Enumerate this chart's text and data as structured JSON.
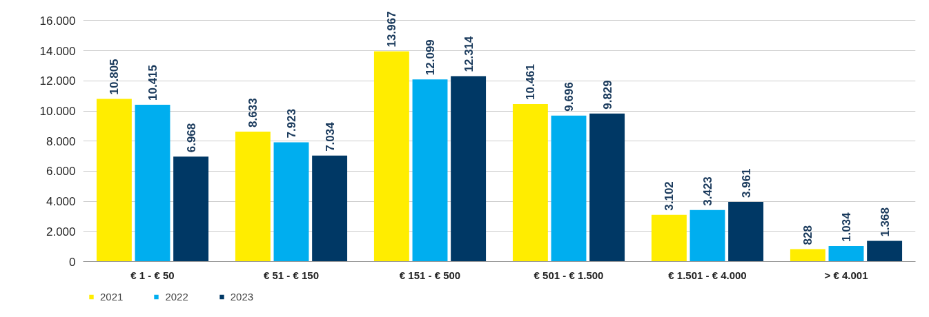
{
  "chart_data": {
    "type": "bar",
    "categories": [
      "€ 1 - € 50",
      "€ 51 - € 150",
      "€ 151 - € 500",
      "€ 501 - € 1.500",
      "€ 1.501 - € 4.000",
      "> € 4.001"
    ],
    "series": [
      {
        "name": "2021",
        "color": "#ffed00",
        "values": [
          10805,
          8633,
          13967,
          10461,
          3102,
          828
        ],
        "value_labels": [
          "10.805",
          "8.633",
          "13.967",
          "10.461",
          "3.102",
          "828"
        ]
      },
      {
        "name": "2022",
        "color": "#00aeef",
        "values": [
          10415,
          7923,
          12099,
          9696,
          3423,
          1034
        ],
        "value_labels": [
          "10.415",
          "7.923",
          "12.099",
          "9.696",
          "3.423",
          "1.034"
        ]
      },
      {
        "name": "2023",
        "color": "#003865",
        "values": [
          6968,
          7034,
          12314,
          9829,
          3961,
          1368
        ],
        "value_labels": [
          "6.968",
          "7.034",
          "12.314",
          "9.829",
          "3.961",
          "1.368"
        ]
      }
    ],
    "ylim": [
      0,
      16000
    ],
    "yticks": [
      {
        "value": 0,
        "label": "0"
      },
      {
        "value": 2000,
        "label": "2.000"
      },
      {
        "value": 4000,
        "label": "4.000"
      },
      {
        "value": 6000,
        "label": "6.000"
      },
      {
        "value": 8000,
        "label": "8.000"
      },
      {
        "value": 10000,
        "label": "10.000"
      },
      {
        "value": 12000,
        "label": "12.000"
      },
      {
        "value": 14000,
        "label": "14.000"
      },
      {
        "value": 16000,
        "label": "16.000"
      }
    ],
    "grid": "y",
    "legend": "bottom left"
  }
}
